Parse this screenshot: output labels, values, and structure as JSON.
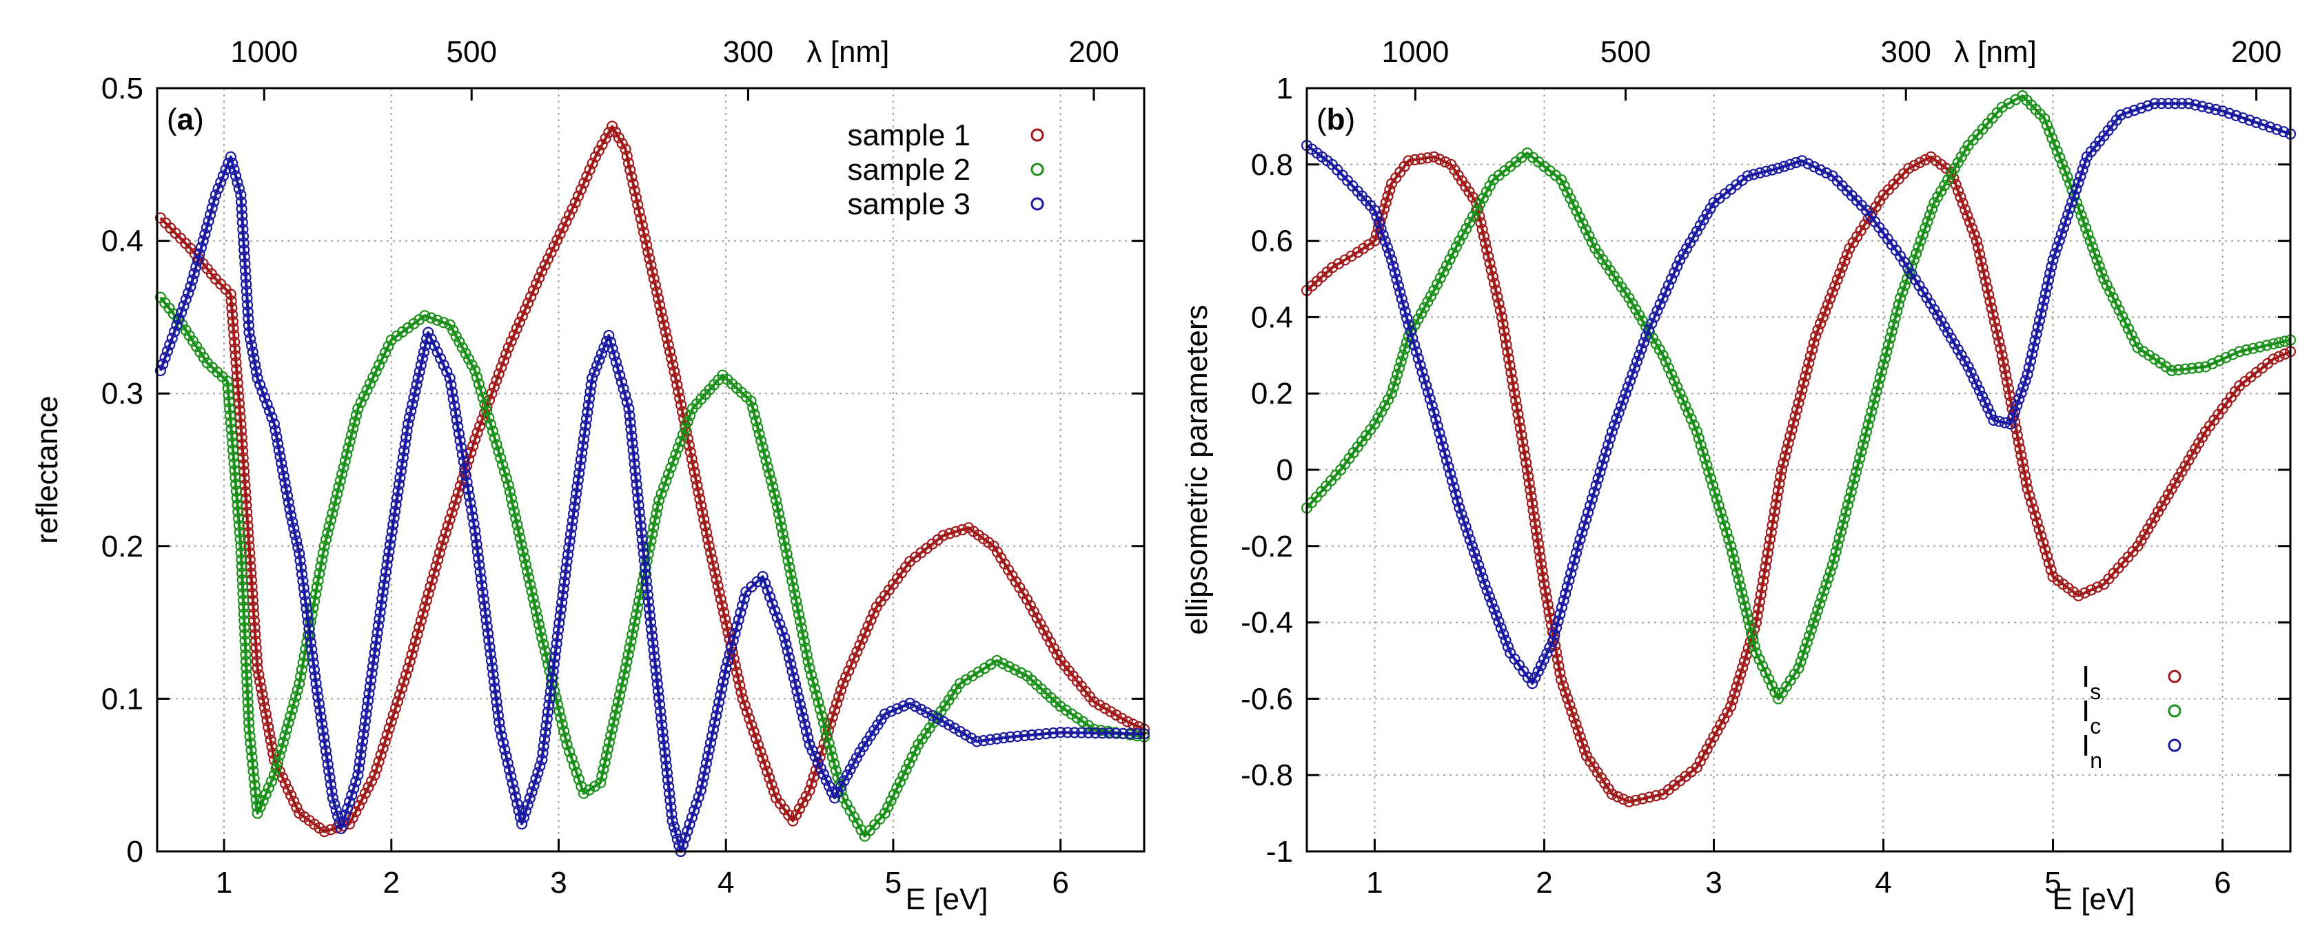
{
  "chart_data": [
    {
      "panel": "a",
      "type": "scatter",
      "panel_label_open": "(",
      "panel_label_letter": "a",
      "panel_label_close": ")",
      "xlabel": "E [eV]",
      "ylabel": "reflectance",
      "x2label": "λ [nm]",
      "xlim": [
        0.6,
        6.5
      ],
      "ylim": [
        0,
        0.5
      ],
      "xticks": [
        1,
        2,
        3,
        4,
        5,
        6
      ],
      "xtick_labels": [
        "1",
        "2",
        "3",
        "4",
        "5",
        "6"
      ],
      "yticks": [
        0,
        0.1,
        0.2,
        0.3,
        0.4,
        0.5
      ],
      "ytick_labels": [
        "0",
        "0.1",
        "0.2",
        "0.3",
        "0.4",
        "0.5"
      ],
      "x2ticks_nm": [
        1000,
        500,
        300,
        200
      ],
      "x2tick_labels": [
        "1000",
        "500",
        "300",
        "200"
      ],
      "grid": true,
      "legend_position": "top-right",
      "series": [
        {
          "name": "sample 1",
          "color": "#a01818",
          "points": [
            [
              0.62,
              0.415
            ],
            [
              0.8,
              0.395
            ],
            [
              0.95,
              0.375
            ],
            [
              1.04,
              0.365
            ],
            [
              1.1,
              0.28
            ],
            [
              1.15,
              0.2
            ],
            [
              1.2,
              0.12
            ],
            [
              1.3,
              0.06
            ],
            [
              1.45,
              0.025
            ],
            [
              1.6,
              0.013
            ],
            [
              1.75,
              0.018
            ],
            [
              1.9,
              0.05
            ],
            [
              2.1,
              0.12
            ],
            [
              2.3,
              0.2
            ],
            [
              2.5,
              0.27
            ],
            [
              2.7,
              0.33
            ],
            [
              2.9,
              0.38
            ],
            [
              3.1,
              0.425
            ],
            [
              3.22,
              0.455
            ],
            [
              3.32,
              0.475
            ],
            [
              3.4,
              0.46
            ],
            [
              3.5,
              0.41
            ],
            [
              3.7,
              0.31
            ],
            [
              3.9,
              0.2
            ],
            [
              4.1,
              0.1
            ],
            [
              4.3,
              0.035
            ],
            [
              4.4,
              0.02
            ],
            [
              4.5,
              0.04
            ],
            [
              4.7,
              0.11
            ],
            [
              4.9,
              0.16
            ],
            [
              5.1,
              0.19
            ],
            [
              5.3,
              0.207
            ],
            [
              5.45,
              0.212
            ],
            [
              5.6,
              0.2
            ],
            [
              5.8,
              0.165
            ],
            [
              6.0,
              0.125
            ],
            [
              6.2,
              0.098
            ],
            [
              6.4,
              0.085
            ],
            [
              6.5,
              0.08
            ]
          ]
        },
        {
          "name": "sample 2",
          "color": "#189018",
          "points": [
            [
              0.62,
              0.363
            ],
            [
              0.75,
              0.345
            ],
            [
              0.9,
              0.32
            ],
            [
              1.02,
              0.308
            ],
            [
              1.1,
              0.2
            ],
            [
              1.15,
              0.08
            ],
            [
              1.2,
              0.025
            ],
            [
              1.3,
              0.05
            ],
            [
              1.45,
              0.11
            ],
            [
              1.6,
              0.2
            ],
            [
              1.8,
              0.29
            ],
            [
              2.0,
              0.335
            ],
            [
              2.2,
              0.351
            ],
            [
              2.35,
              0.345
            ],
            [
              2.5,
              0.315
            ],
            [
              2.7,
              0.24
            ],
            [
              2.9,
              0.14
            ],
            [
              3.05,
              0.07
            ],
            [
              3.15,
              0.038
            ],
            [
              3.25,
              0.045
            ],
            [
              3.4,
              0.12
            ],
            [
              3.6,
              0.23
            ],
            [
              3.8,
              0.29
            ],
            [
              3.98,
              0.312
            ],
            [
              4.15,
              0.295
            ],
            [
              4.3,
              0.23
            ],
            [
              4.5,
              0.12
            ],
            [
              4.7,
              0.035
            ],
            [
              4.83,
              0.01
            ],
            [
              4.95,
              0.025
            ],
            [
              5.15,
              0.07
            ],
            [
              5.4,
              0.11
            ],
            [
              5.62,
              0.125
            ],
            [
              5.8,
              0.115
            ],
            [
              6.0,
              0.095
            ],
            [
              6.2,
              0.08
            ],
            [
              6.5,
              0.075
            ]
          ]
        },
        {
          "name": "sample 3",
          "color": "#1818a0",
          "points": [
            [
              0.62,
              0.315
            ],
            [
              0.8,
              0.37
            ],
            [
              0.95,
              0.43
            ],
            [
              1.04,
              0.455
            ],
            [
              1.1,
              0.43
            ],
            [
              1.15,
              0.34
            ],
            [
              1.2,
              0.31
            ],
            [
              1.3,
              0.28
            ],
            [
              1.4,
              0.22
            ],
            [
              1.45,
              0.195
            ],
            [
              1.55,
              0.11
            ],
            [
              1.65,
              0.035
            ],
            [
              1.7,
              0.015
            ],
            [
              1.8,
              0.05
            ],
            [
              1.95,
              0.17
            ],
            [
              2.1,
              0.28
            ],
            [
              2.22,
              0.34
            ],
            [
              2.35,
              0.31
            ],
            [
              2.5,
              0.21
            ],
            [
              2.65,
              0.08
            ],
            [
              2.78,
              0.018
            ],
            [
              2.9,
              0.06
            ],
            [
              3.05,
              0.19
            ],
            [
              3.2,
              0.31
            ],
            [
              3.3,
              0.338
            ],
            [
              3.42,
              0.29
            ],
            [
              3.55,
              0.15
            ],
            [
              3.68,
              0.02
            ],
            [
              3.73,
              0.0
            ],
            [
              3.85,
              0.04
            ],
            [
              4.0,
              0.12
            ],
            [
              4.12,
              0.17
            ],
            [
              4.22,
              0.18
            ],
            [
              4.35,
              0.14
            ],
            [
              4.5,
              0.07
            ],
            [
              4.65,
              0.035
            ],
            [
              4.8,
              0.065
            ],
            [
              4.95,
              0.09
            ],
            [
              5.1,
              0.097
            ],
            [
              5.3,
              0.085
            ],
            [
              5.5,
              0.072
            ],
            [
              5.7,
              0.075
            ],
            [
              6.0,
              0.078
            ],
            [
              6.5,
              0.077
            ]
          ]
        }
      ]
    },
    {
      "panel": "b",
      "type": "scatter",
      "panel_label_open": "(",
      "panel_label_letter": "b",
      "panel_label_close": ")",
      "xlabel": "E [eV]",
      "ylabel": "ellipsometric parameters",
      "x2label": "λ [nm]",
      "xlim": [
        0.6,
        6.4
      ],
      "ylim": [
        -1,
        1
      ],
      "xticks": [
        1,
        2,
        3,
        4,
        5,
        6
      ],
      "xtick_labels": [
        "1",
        "2",
        "3",
        "4",
        "5",
        "6"
      ],
      "yticks": [
        -1,
        -0.8,
        -0.6,
        -0.4,
        -0.2,
        0,
        0.2,
        0.4,
        0.6,
        0.8,
        1
      ],
      "ytick_labels": [
        "-1",
        "-0.8",
        "-0.6",
        "-0.4",
        "-0.2",
        "0",
        "0.2",
        "0.4",
        "0.6",
        "0.8",
        "1"
      ],
      "x2ticks_nm": [
        1000,
        500,
        300,
        200
      ],
      "x2tick_labels": [
        "1000",
        "500",
        "300",
        "200"
      ],
      "grid": true,
      "legend_position": "bottom-right",
      "series": [
        {
          "name": "I",
          "subscript": "s",
          "color": "#a01818",
          "points": [
            [
              0.6,
              0.47
            ],
            [
              0.75,
              0.53
            ],
            [
              0.9,
              0.57
            ],
            [
              1.0,
              0.6
            ],
            [
              1.1,
              0.75
            ],
            [
              1.2,
              0.81
            ],
            [
              1.35,
              0.82
            ],
            [
              1.45,
              0.8
            ],
            [
              1.6,
              0.7
            ],
            [
              1.75,
              0.4
            ],
            [
              1.9,
              0.0
            ],
            [
              2.0,
              -0.3
            ],
            [
              2.1,
              -0.55
            ],
            [
              2.25,
              -0.75
            ],
            [
              2.4,
              -0.85
            ],
            [
              2.5,
              -0.87
            ],
            [
              2.7,
              -0.85
            ],
            [
              2.9,
              -0.78
            ],
            [
              3.1,
              -0.62
            ],
            [
              3.25,
              -0.4
            ],
            [
              3.4,
              0.0
            ],
            [
              3.6,
              0.35
            ],
            [
              3.8,
              0.58
            ],
            [
              4.0,
              0.72
            ],
            [
              4.15,
              0.79
            ],
            [
              4.28,
              0.82
            ],
            [
              4.4,
              0.78
            ],
            [
              4.55,
              0.6
            ],
            [
              4.7,
              0.3
            ],
            [
              4.85,
              -0.05
            ],
            [
              5.0,
              -0.28
            ],
            [
              5.15,
              -0.33
            ],
            [
              5.3,
              -0.3
            ],
            [
              5.5,
              -0.2
            ],
            [
              5.7,
              -0.05
            ],
            [
              5.9,
              0.1
            ],
            [
              6.1,
              0.22
            ],
            [
              6.3,
              0.29
            ],
            [
              6.4,
              0.31
            ]
          ]
        },
        {
          "name": "I",
          "subscript": "c",
          "color": "#189018",
          "points": [
            [
              0.6,
              -0.1
            ],
            [
              0.8,
              0.0
            ],
            [
              1.0,
              0.12
            ],
            [
              1.1,
              0.2
            ],
            [
              1.2,
              0.35
            ],
            [
              1.35,
              0.47
            ],
            [
              1.5,
              0.6
            ],
            [
              1.7,
              0.76
            ],
            [
              1.9,
              0.83
            ],
            [
              2.1,
              0.76
            ],
            [
              2.3,
              0.58
            ],
            [
              2.5,
              0.45
            ],
            [
              2.7,
              0.3
            ],
            [
              2.9,
              0.1
            ],
            [
              3.1,
              -0.2
            ],
            [
              3.25,
              -0.48
            ],
            [
              3.38,
              -0.6
            ],
            [
              3.5,
              -0.52
            ],
            [
              3.7,
              -0.25
            ],
            [
              3.9,
              0.1
            ],
            [
              4.1,
              0.45
            ],
            [
              4.3,
              0.7
            ],
            [
              4.5,
              0.85
            ],
            [
              4.7,
              0.95
            ],
            [
              4.82,
              0.98
            ],
            [
              4.95,
              0.92
            ],
            [
              5.1,
              0.75
            ],
            [
              5.3,
              0.5
            ],
            [
              5.5,
              0.32
            ],
            [
              5.7,
              0.26
            ],
            [
              5.9,
              0.27
            ],
            [
              6.1,
              0.31
            ],
            [
              6.3,
              0.33
            ],
            [
              6.4,
              0.34
            ]
          ]
        },
        {
          "name": "I",
          "subscript": "n",
          "color": "#1818a0",
          "points": [
            [
              0.6,
              0.85
            ],
            [
              0.75,
              0.8
            ],
            [
              0.9,
              0.73
            ],
            [
              1.0,
              0.68
            ],
            [
              1.1,
              0.55
            ],
            [
              1.2,
              0.38
            ],
            [
              1.35,
              0.15
            ],
            [
              1.5,
              -0.1
            ],
            [
              1.65,
              -0.3
            ],
            [
              1.8,
              -0.48
            ],
            [
              1.93,
              -0.56
            ],
            [
              2.05,
              -0.45
            ],
            [
              2.2,
              -0.2
            ],
            [
              2.4,
              0.1
            ],
            [
              2.6,
              0.35
            ],
            [
              2.8,
              0.55
            ],
            [
              3.0,
              0.7
            ],
            [
              3.2,
              0.77
            ],
            [
              3.38,
              0.79
            ],
            [
              3.52,
              0.81
            ],
            [
              3.7,
              0.77
            ],
            [
              3.9,
              0.68
            ],
            [
              4.1,
              0.56
            ],
            [
              4.3,
              0.42
            ],
            [
              4.5,
              0.27
            ],
            [
              4.65,
              0.13
            ],
            [
              4.75,
              0.12
            ],
            [
              4.85,
              0.25
            ],
            [
              5.0,
              0.55
            ],
            [
              5.2,
              0.82
            ],
            [
              5.4,
              0.93
            ],
            [
              5.6,
              0.96
            ],
            [
              5.8,
              0.96
            ],
            [
              6.0,
              0.94
            ],
            [
              6.2,
              0.91
            ],
            [
              6.4,
              0.88
            ]
          ]
        }
      ]
    }
  ]
}
